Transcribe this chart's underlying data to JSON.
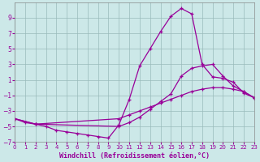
{
  "xlabel": "Windchill (Refroidissement éolien,°C)",
  "bg_color": "#cce8e8",
  "line_color": "#990099",
  "grid_color": "#99bbbb",
  "xlim": [
    0,
    23
  ],
  "ylim": [
    -7,
    11
  ],
  "yticks": [
    -7,
    -5,
    -3,
    -1,
    1,
    3,
    5,
    7,
    9
  ],
  "xticks": [
    0,
    1,
    2,
    3,
    4,
    5,
    6,
    7,
    8,
    9,
    10,
    11,
    12,
    13,
    14,
    15,
    16,
    17,
    18,
    19,
    20,
    21,
    22,
    23
  ],
  "series1_x": [
    0,
    1,
    2,
    3,
    4,
    5,
    6,
    7,
    8,
    9,
    10,
    11,
    12,
    13,
    14,
    15,
    16,
    17,
    18,
    19,
    20,
    21,
    22,
    23
  ],
  "series1_y": [
    -4.0,
    -4.5,
    -4.7,
    -5.0,
    -5.5,
    -5.7,
    -5.9,
    -6.1,
    -6.3,
    -6.5,
    -4.8,
    -1.5,
    2.8,
    5.0,
    7.2,
    9.2,
    10.2,
    9.5,
    3.0,
    1.4,
    1.2,
    0.7,
    -0.7,
    -1.3
  ],
  "series2_x": [
    0,
    2,
    10,
    11,
    12,
    13,
    14,
    15,
    16,
    17,
    18,
    19,
    20,
    21,
    22,
    23
  ],
  "series2_y": [
    -4.0,
    -4.7,
    -4.0,
    -3.5,
    -3.0,
    -2.5,
    -2.0,
    -1.5,
    -1.0,
    -0.5,
    -0.2,
    0.0,
    0.0,
    -0.2,
    -0.5,
    -1.3
  ],
  "series3_x": [
    0,
    2,
    10,
    11,
    12,
    13,
    14,
    15,
    16,
    17,
    18,
    19,
    20,
    21,
    22,
    23
  ],
  "series3_y": [
    -4.0,
    -4.7,
    -5.0,
    -4.5,
    -3.8,
    -2.8,
    -1.8,
    -0.8,
    1.5,
    2.5,
    2.8,
    3.0,
    1.5,
    0.2,
    -0.5,
    -1.3
  ]
}
